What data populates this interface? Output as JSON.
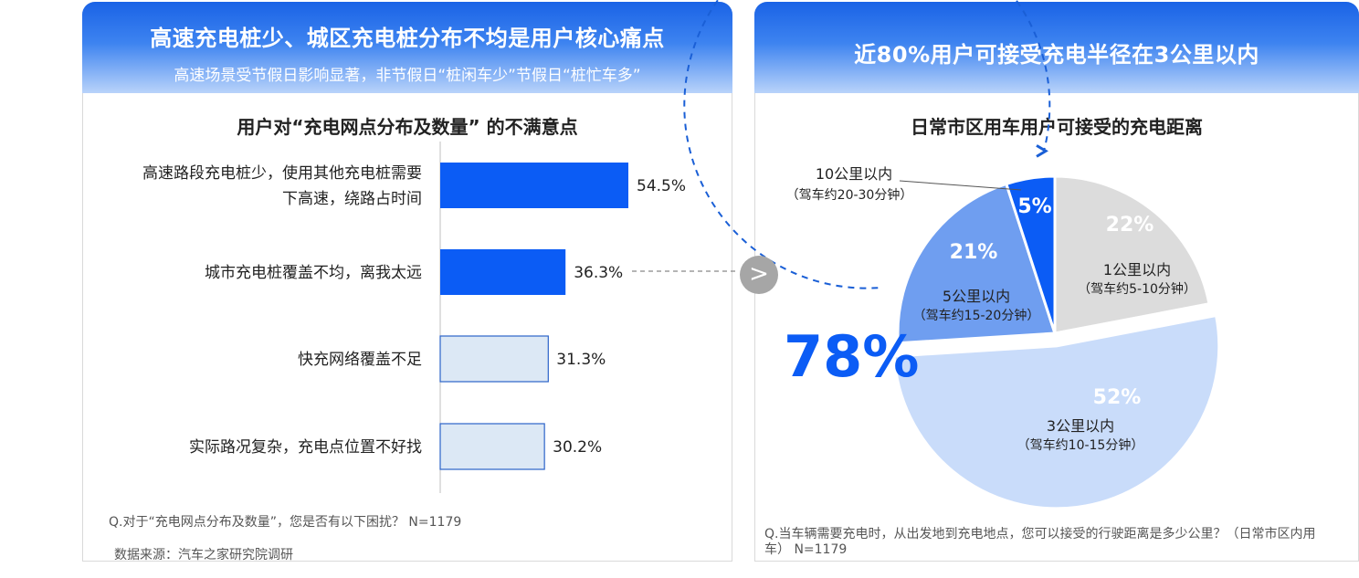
{
  "left": {
    "title": "高速充电桩少、城区充电桩分布不均是用户核心痛点",
    "subtitle": "高速场景受节假日影响显著，非节假日“桩闲车少”节假日“桩忙车多”",
    "footnote_question": "Q.对于“充电网点分布及数量”，您是否有以下困扰？ N=1179",
    "footnote_source": "数据来源：汽车之家研究院调研"
  },
  "right": {
    "title": "近80%用户可接受充电半径在3公里以内",
    "footnote": "Q.当车辆需要充电时，从出发地到充电地点，您可以接受的行驶距离是多少公里？（日常市区内用车） N=1179",
    "big_percent": "78%"
  },
  "nav_arrow": ">",
  "colors": {
    "header_blue": "#1a63e6",
    "bar_dark": "#0b5cf5",
    "bar_light": "#dce8f5",
    "pie_22": "#dcdcdc",
    "pie_52": "#c9dcfa",
    "pie_21": "#6f9ef0",
    "pie_5": "#0b5cf5",
    "dashed_ring": "#1a5fd6"
  },
  "chart_data": [
    {
      "type": "bar",
      "orientation": "horizontal",
      "title": "用户对“充电网点分布及数量” 的不满意点",
      "categories": [
        "高速路段充电桩少，使用其他充电桩需要下高速，绕路占时间",
        "城市充电桩覆盖不均，离我太远",
        "快充网络覆盖不足",
        "实际路况复杂，充电点位置不好找"
      ],
      "category_lines": [
        [
          "高速路段充电桩少，使用其他充电桩需要",
          "下高速，绕路占时间"
        ],
        [
          "城市充电桩覆盖不均，离我太远"
        ],
        [
          "快充网络覆盖不足"
        ],
        [
          "实际路况复杂，充电点位置不好找"
        ]
      ],
      "values": [
        54.5,
        36.3,
        31.3,
        30.2
      ],
      "labels": [
        "54.5%",
        "36.3%",
        "31.3%",
        "30.2%"
      ],
      "highlight": [
        true,
        true,
        false,
        false
      ],
      "unit": "%"
    },
    {
      "type": "pie",
      "title": "日常市区用车用户可接受的充电距离",
      "slices": [
        {
          "label": "1公里以内",
          "sublabel": "（驾车约5-10分钟）",
          "value": 22,
          "pct": "22%",
          "color": "#dcdcdc",
          "exploded": false
        },
        {
          "label": "3公里以内",
          "sublabel": "（驾车约10-15分钟）",
          "value": 52,
          "pct": "52%",
          "color": "#c9dcfa",
          "exploded": true
        },
        {
          "label": "5公里以内",
          "sublabel": "（驾车约15-20分钟）",
          "value": 21,
          "pct": "21%",
          "color": "#6f9ef0",
          "exploded": false
        },
        {
          "label": "10公里以内",
          "sublabel": "（驾车约20-30分钟）",
          "value": 5,
          "pct": "5%",
          "color": "#0b5cf5",
          "exploded": false
        }
      ]
    }
  ]
}
